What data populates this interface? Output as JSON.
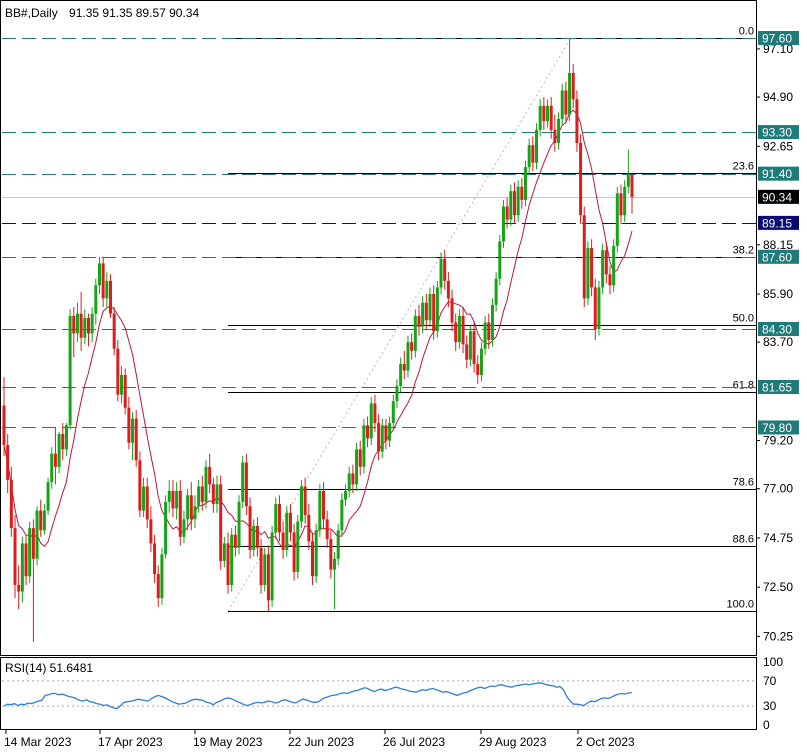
{
  "header": {
    "symbol": "BB#,Daily",
    "ohlc": "91.35 91.35 89.57 90.34"
  },
  "rsi_panel": {
    "label": "RSI(14) 51.6481",
    "levels": [
      "100",
      "70",
      "30",
      "0"
    ]
  },
  "colors": {
    "up": "#16a316",
    "down": "#dd1c1c",
    "ma": "#c0143c",
    "dashed": "#1f7a7a",
    "rsi": "#2f7fd6",
    "navy_label": "#0b0b6e",
    "black_label": "#000000"
  },
  "chart_data": [
    {
      "type": "candlestick",
      "x_ticks": [
        "14 Mar 2023",
        "17 Apr 2023",
        "19 May 2023",
        "22 Jun 2023",
        "26 Jul 2023",
        "29 Aug 2023",
        "2 Oct 2023"
      ],
      "y_ticks": [
        "97.10",
        "94.90",
        "92.65",
        "88.15",
        "85.90",
        "83.70",
        "79.20",
        "77.00",
        "74.75",
        "72.50",
        "70.25"
      ],
      "ylim": [
        69.4,
        98.4
      ],
      "price_levels": [
        {
          "value": 97.6,
          "label": "97.60",
          "style": "dashed-teal"
        },
        {
          "value": 93.3,
          "label": "93.30",
          "style": "dashed-teal"
        },
        {
          "value": 91.4,
          "label": "91.40",
          "style": "dashed-teal"
        },
        {
          "value": 90.34,
          "label": "90.34",
          "style": "current"
        },
        {
          "value": 89.15,
          "label": "89.15",
          "style": "dashed-navy"
        },
        {
          "value": 87.6,
          "label": "87.60",
          "style": "dashed-teal"
        },
        {
          "value": 84.3,
          "label": "84.30",
          "style": "dashed-teal"
        },
        {
          "value": 81.65,
          "label": "81.65",
          "style": "dashed-teal"
        },
        {
          "value": 79.8,
          "label": "79.80",
          "style": "dashed-teal"
        }
      ],
      "fibonacci": {
        "high": 97.6,
        "low": 71.4,
        "levels": [
          {
            "label": "0.0",
            "value": 97.6
          },
          {
            "label": "23.6",
            "value": 91.42
          },
          {
            "label": "38.2",
            "value": 87.59
          },
          {
            "label": "50.0",
            "value": 84.5
          },
          {
            "label": "61.8",
            "value": 81.41
          },
          {
            "label": "78.6",
            "value": 77.0
          },
          {
            "label": "88.6",
            "value": 74.38
          },
          {
            "label": "100.0",
            "value": 71.4
          }
        ]
      },
      "moving_average": "red line",
      "candles": [
        [
          80.8,
          82.1,
          78.5,
          79.0
        ],
        [
          79.0,
          79.5,
          76.8,
          77.4
        ],
        [
          77.4,
          78.0,
          74.8,
          75.2
        ],
        [
          75.2,
          75.8,
          72.0,
          72.6
        ],
        [
          72.6,
          73.5,
          71.5,
          72.3
        ],
        [
          72.3,
          74.8,
          71.8,
          74.5
        ],
        [
          74.5,
          74.9,
          72.6,
          73.0
        ],
        [
          73.0,
          75.5,
          72.7,
          75.2
        ],
        [
          75.2,
          75.6,
          70.0,
          73.8
        ],
        [
          73.8,
          76.2,
          73.5,
          76.0
        ],
        [
          76.0,
          76.5,
          74.8,
          75.1
        ],
        [
          75.1,
          76.3,
          74.9,
          76.0
        ],
        [
          76.0,
          77.5,
          75.8,
          77.3
        ],
        [
          77.3,
          78.9,
          77.0,
          78.6
        ],
        [
          78.6,
          79.8,
          77.2,
          78.0
        ],
        [
          78.0,
          79.6,
          77.7,
          79.5
        ],
        [
          79.5,
          80.0,
          78.3,
          78.8
        ],
        [
          78.8,
          80.0,
          78.5,
          79.9
        ],
        [
          79.9,
          85.2,
          79.7,
          84.9
        ],
        [
          84.9,
          85.3,
          83.0,
          84.1
        ],
        [
          84.1,
          85.5,
          83.7,
          85.0
        ],
        [
          85.0,
          86.0,
          83.3,
          83.9
        ],
        [
          83.9,
          85.2,
          83.6,
          84.8
        ],
        [
          84.8,
          85.0,
          83.5,
          84.1
        ],
        [
          84.1,
          85.3,
          83.7,
          85.0
        ],
        [
          85.0,
          86.6,
          84.5,
          86.3
        ],
        [
          86.3,
          87.6,
          85.9,
          87.3
        ],
        [
          87.3,
          87.6,
          85.3,
          85.7
        ],
        [
          85.7,
          86.9,
          85.3,
          86.5
        ],
        [
          86.5,
          86.8,
          84.8,
          85.0
        ],
        [
          85.0,
          85.3,
          83.1,
          83.4
        ],
        [
          83.4,
          83.8,
          81.0,
          81.3
        ],
        [
          81.3,
          82.6,
          80.9,
          82.2
        ],
        [
          82.2,
          82.5,
          80.4,
          80.7
        ],
        [
          80.7,
          81.2,
          78.8,
          79.1
        ],
        [
          79.1,
          80.5,
          78.3,
          80.2
        ],
        [
          80.2,
          80.6,
          78.0,
          78.3
        ],
        [
          78.3,
          78.7,
          75.7,
          76.0
        ],
        [
          76.0,
          77.5,
          75.7,
          77.1
        ],
        [
          77.1,
          77.5,
          75.2,
          75.6
        ],
        [
          75.6,
          76.2,
          74.1,
          74.5
        ],
        [
          74.5,
          74.9,
          72.7,
          73.1
        ],
        [
          73.1,
          73.5,
          71.6,
          72.0
        ],
        [
          72.0,
          74.3,
          71.7,
          74.0
        ],
        [
          74.0,
          76.7,
          73.8,
          76.4
        ],
        [
          76.4,
          77.4,
          75.9,
          76.9
        ],
        [
          76.9,
          77.4,
          75.7,
          76.1
        ],
        [
          76.1,
          77.3,
          75.6,
          76.9
        ],
        [
          76.9,
          77.4,
          74.4,
          74.8
        ],
        [
          74.8,
          76.0,
          74.5,
          75.6
        ],
        [
          75.6,
          77.0,
          75.1,
          76.7
        ],
        [
          76.7,
          77.3,
          75.1,
          75.6
        ],
        [
          75.6,
          76.7,
          75.2,
          76.2
        ],
        [
          76.2,
          77.4,
          75.9,
          77.1
        ],
        [
          77.1,
          77.6,
          76.0,
          76.4
        ],
        [
          76.4,
          78.3,
          76.1,
          78.0
        ],
        [
          78.0,
          78.6,
          76.8,
          77.2
        ],
        [
          77.2,
          77.5,
          75.9,
          76.3
        ],
        [
          76.3,
          77.6,
          75.9,
          77.2
        ],
        [
          77.2,
          77.6,
          73.3,
          73.7
        ],
        [
          73.7,
          74.8,
          73.4,
          74.5
        ],
        [
          74.5,
          75.0,
          72.2,
          72.6
        ],
        [
          72.6,
          75.2,
          72.3,
          74.9
        ],
        [
          74.9,
          75.3,
          73.9,
          74.3
        ],
        [
          74.3,
          76.7,
          74.0,
          76.4
        ],
        [
          76.4,
          78.5,
          76.1,
          78.2
        ],
        [
          78.2,
          78.6,
          75.8,
          76.2
        ],
        [
          76.2,
          76.6,
          73.8,
          74.2
        ],
        [
          74.2,
          75.6,
          73.9,
          75.3
        ],
        [
          75.3,
          75.7,
          73.9,
          74.3
        ],
        [
          74.3,
          74.7,
          72.2,
          72.6
        ],
        [
          72.6,
          74.3,
          72.3,
          74.0
        ],
        [
          74.0,
          74.4,
          71.4,
          71.9
        ],
        [
          71.9,
          75.3,
          71.6,
          75.0
        ],
        [
          75.0,
          76.6,
          74.7,
          76.3
        ],
        [
          76.3,
          76.7,
          74.6,
          75.0
        ],
        [
          75.0,
          75.5,
          73.8,
          74.2
        ],
        [
          74.2,
          76.2,
          73.9,
          75.9
        ],
        [
          75.9,
          76.3,
          74.6,
          75.0
        ],
        [
          75.0,
          75.4,
          72.8,
          73.2
        ],
        [
          73.2,
          75.8,
          72.9,
          75.5
        ],
        [
          75.5,
          77.4,
          75.2,
          77.1
        ],
        [
          77.1,
          77.5,
          75.4,
          75.8
        ],
        [
          75.8,
          76.3,
          74.2,
          74.6
        ],
        [
          74.6,
          75.0,
          72.6,
          73.0
        ],
        [
          73.0,
          75.4,
          72.7,
          75.1
        ],
        [
          75.1,
          77.2,
          74.8,
          76.9
        ],
        [
          76.9,
          77.3,
          75.2,
          75.6
        ],
        [
          75.6,
          76.0,
          74.3,
          74.7
        ],
        [
          74.7,
          75.1,
          72.9,
          73.3
        ],
        [
          73.3,
          74.1,
          71.5,
          73.8
        ],
        [
          73.8,
          75.4,
          73.5,
          75.1
        ],
        [
          75.1,
          76.8,
          74.8,
          76.5
        ],
        [
          76.5,
          77.2,
          76.2,
          76.9
        ],
        [
          76.9,
          78.0,
          76.6,
          77.7
        ],
        [
          77.7,
          78.1,
          76.8,
          77.2
        ],
        [
          77.2,
          79.1,
          76.9,
          78.8
        ],
        [
          78.8,
          79.2,
          77.6,
          78.0
        ],
        [
          78.0,
          80.2,
          77.7,
          79.9
        ],
        [
          79.9,
          80.3,
          78.9,
          79.3
        ],
        [
          79.3,
          81.2,
          79.0,
          80.9
        ],
        [
          80.9,
          81.3,
          79.6,
          80.0
        ],
        [
          80.0,
          80.4,
          78.3,
          78.7
        ],
        [
          78.7,
          80.2,
          78.4,
          79.9
        ],
        [
          79.9,
          80.2,
          78.8,
          79.2
        ],
        [
          79.2,
          80.3,
          78.9,
          80.0
        ],
        [
          80.0,
          81.3,
          79.7,
          81.0
        ],
        [
          81.0,
          82.0,
          80.7,
          81.7
        ],
        [
          81.7,
          83.0,
          81.4,
          82.7
        ],
        [
          82.7,
          83.3,
          82.0,
          82.4
        ],
        [
          82.4,
          84.0,
          82.1,
          83.7
        ],
        [
          83.7,
          84.1,
          82.9,
          83.3
        ],
        [
          83.3,
          85.2,
          83.0,
          84.9
        ],
        [
          84.9,
          85.4,
          84.0,
          84.4
        ],
        [
          84.4,
          85.8,
          84.1,
          85.5
        ],
        [
          85.5,
          85.9,
          84.3,
          84.7
        ],
        [
          84.7,
          86.2,
          84.4,
          85.9
        ],
        [
          85.9,
          86.3,
          83.8,
          84.2
        ],
        [
          84.2,
          86.5,
          83.9,
          86.2
        ],
        [
          86.2,
          87.8,
          85.9,
          87.5
        ],
        [
          87.5,
          87.9,
          86.1,
          86.5
        ],
        [
          86.5,
          86.9,
          85.3,
          85.7
        ],
        [
          85.7,
          86.1,
          84.2,
          84.6
        ],
        [
          84.6,
          85.0,
          83.3,
          83.7
        ],
        [
          83.7,
          85.2,
          83.4,
          84.9
        ],
        [
          84.9,
          85.3,
          83.2,
          83.6
        ],
        [
          83.6,
          84.0,
          82.5,
          82.9
        ],
        [
          82.9,
          84.5,
          82.6,
          84.2
        ],
        [
          84.2,
          84.6,
          82.3,
          82.7
        ],
        [
          82.7,
          83.1,
          81.8,
          82.2
        ],
        [
          82.2,
          83.7,
          81.9,
          83.4
        ],
        [
          83.4,
          84.9,
          83.1,
          84.6
        ],
        [
          84.6,
          85.0,
          83.4,
          83.8
        ],
        [
          83.8,
          85.7,
          83.5,
          85.4
        ],
        [
          85.4,
          86.9,
          85.1,
          86.6
        ],
        [
          86.6,
          88.6,
          86.3,
          88.3
        ],
        [
          88.3,
          90.2,
          88.0,
          89.9
        ],
        [
          89.9,
          90.3,
          88.9,
          89.3
        ],
        [
          89.3,
          90.9,
          89.0,
          90.6
        ],
        [
          90.6,
          91.0,
          89.1,
          89.5
        ],
        [
          89.5,
          91.1,
          89.2,
          90.8
        ],
        [
          90.8,
          91.2,
          89.8,
          90.2
        ],
        [
          90.2,
          92.0,
          89.9,
          91.7
        ],
        [
          91.7,
          93.0,
          91.4,
          92.7
        ],
        [
          92.7,
          93.1,
          91.5,
          91.9
        ],
        [
          91.9,
          93.7,
          91.6,
          93.4
        ],
        [
          93.4,
          94.8,
          93.1,
          94.5
        ],
        [
          94.5,
          94.9,
          93.4,
          93.8
        ],
        [
          93.8,
          94.8,
          93.5,
          94.5
        ],
        [
          94.5,
          94.9,
          93.0,
          93.4
        ],
        [
          93.4,
          94.1,
          92.4,
          92.8
        ],
        [
          92.8,
          94.2,
          92.5,
          93.9
        ],
        [
          93.9,
          95.5,
          93.6,
          95.2
        ],
        [
          95.2,
          95.6,
          93.7,
          94.1
        ],
        [
          94.1,
          97.6,
          93.8,
          96.0
        ],
        [
          96.0,
          96.4,
          94.4,
          94.8
        ],
        [
          94.8,
          95.2,
          92.4,
          92.8
        ],
        [
          92.8,
          93.2,
          89.1,
          89.5
        ],
        [
          89.5,
          89.9,
          85.3,
          85.7
        ],
        [
          85.7,
          88.3,
          85.4,
          88.0
        ],
        [
          88.0,
          88.4,
          85.8,
          86.2
        ],
        [
          86.2,
          86.6,
          83.8,
          84.3
        ],
        [
          84.3,
          86.5,
          84.0,
          86.2
        ],
        [
          86.2,
          88.2,
          85.9,
          87.9
        ],
        [
          87.9,
          88.3,
          86.4,
          86.8
        ],
        [
          86.8,
          87.2,
          85.9,
          86.3
        ],
        [
          86.3,
          88.4,
          86.0,
          88.1
        ],
        [
          88.1,
          90.8,
          87.8,
          90.5
        ],
        [
          90.5,
          90.9,
          89.1,
          89.5
        ],
        [
          89.5,
          91.1,
          89.2,
          90.8
        ],
        [
          90.8,
          92.5,
          90.5,
          91.35
        ],
        [
          91.35,
          91.35,
          89.57,
          90.34
        ]
      ]
    },
    {
      "type": "line",
      "title": "RSI(14) 51.6481",
      "ylim": [
        0,
        100
      ],
      "y_ticks": [
        100,
        70,
        30,
        0
      ],
      "last_value": 51.6481,
      "values": [
        30,
        33,
        32,
        34,
        31,
        33,
        32,
        35,
        34,
        36,
        38,
        39,
        47,
        48,
        50,
        50,
        48,
        49,
        47,
        45,
        44,
        42,
        39,
        38,
        40,
        37,
        36,
        34,
        33,
        31,
        32,
        29,
        27,
        26,
        31,
        36,
        37,
        38,
        39,
        41,
        40,
        39,
        38,
        42,
        45,
        47,
        45,
        43,
        40,
        37,
        35,
        33,
        34,
        35,
        38,
        40,
        41,
        40,
        39,
        36,
        35,
        32,
        36,
        38,
        41,
        43,
        42,
        40,
        37,
        35,
        32,
        31,
        33,
        35,
        36,
        35,
        36,
        38,
        37,
        35,
        36,
        39,
        40,
        38,
        36,
        35,
        38,
        41,
        40,
        38,
        36,
        36,
        38,
        42,
        44,
        46,
        47,
        48,
        50,
        51,
        50,
        52,
        54,
        55,
        57,
        59,
        58,
        55,
        53,
        56,
        57,
        55,
        56,
        58,
        60,
        59,
        57,
        56,
        54,
        53,
        52,
        54,
        56,
        55,
        57,
        58,
        56,
        54,
        52,
        53,
        51,
        49,
        47,
        49,
        51,
        52,
        55,
        57,
        59,
        60,
        58,
        60,
        62,
        61,
        63,
        64,
        62,
        61,
        60,
        62,
        63,
        64,
        65,
        64,
        65,
        66,
        67,
        66,
        64,
        63,
        62,
        60,
        61,
        56,
        45,
        38,
        33,
        33,
        32,
        31,
        35,
        38,
        37,
        39,
        42,
        43,
        42,
        44,
        47,
        49,
        50,
        49,
        51,
        51.6481
      ]
    }
  ]
}
